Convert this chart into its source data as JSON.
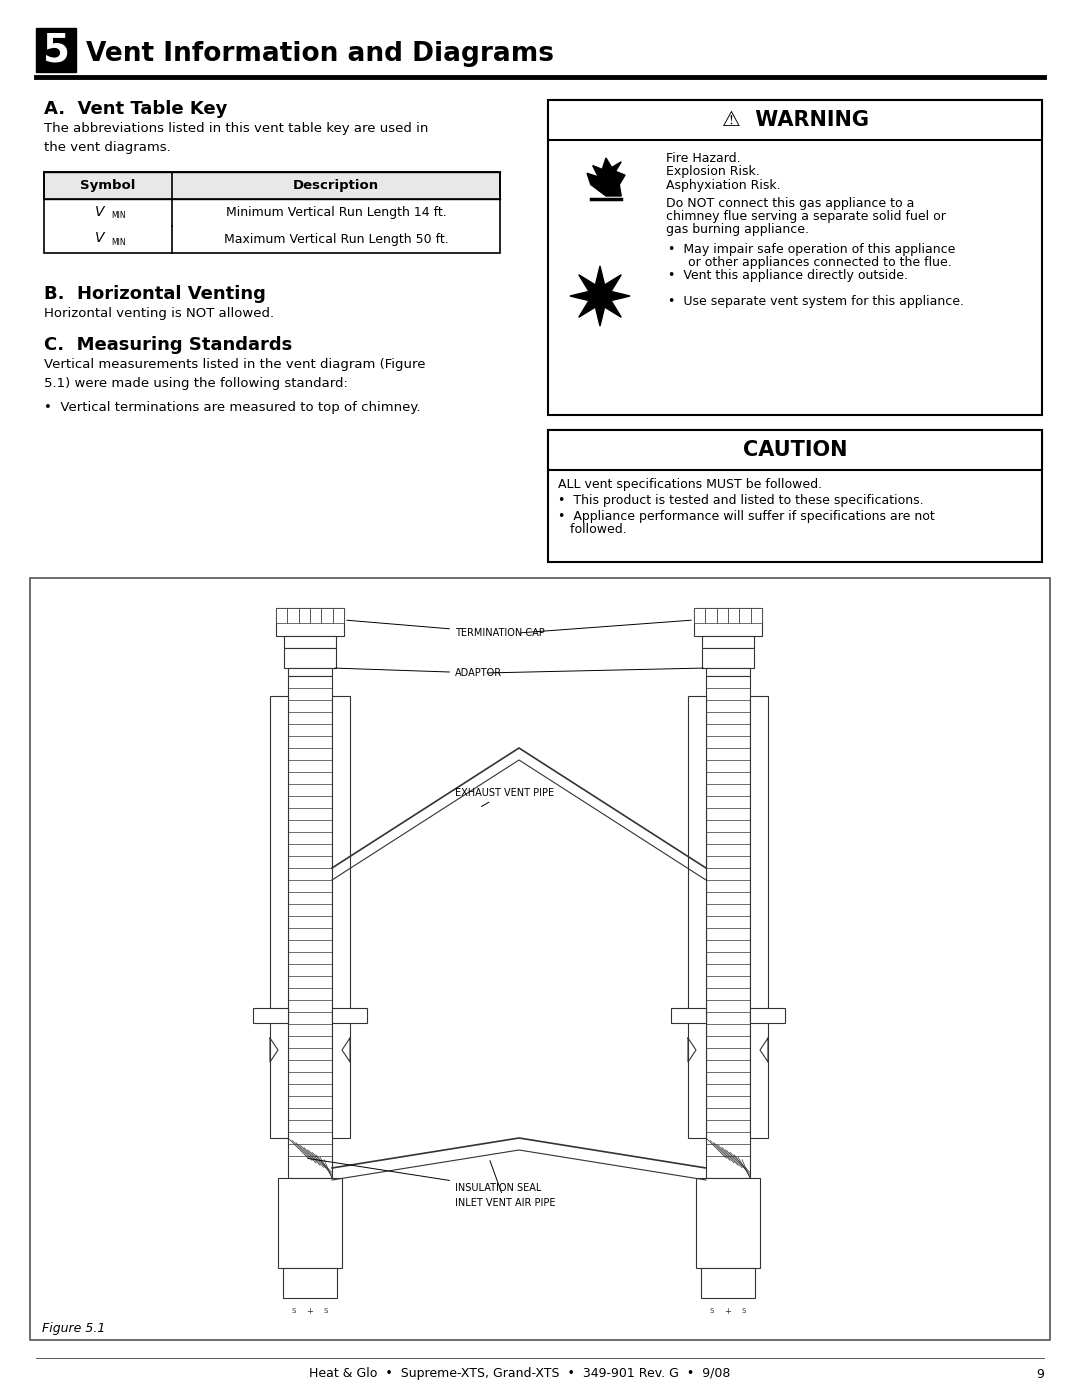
{
  "page_bg": "#ffffff",
  "title_number": "5",
  "title_text": "Vent Information and Diagrams",
  "section_a_title": "A.  Vent Table Key",
  "section_a_body": "The abbreviations listed in this vent table key are used in\nthe vent diagrams.",
  "table_headers": [
    "Symbol",
    "Description"
  ],
  "table_row1_desc": "Minimum Vertical Run Length 14 ft.",
  "table_row2_desc": "Maximum Vertical Run Length 50 ft.",
  "section_b_title": "B.  Horizontal Venting",
  "section_b_body": "Horizontal venting is NOT allowed.",
  "section_c_title": "C.  Measuring Standards",
  "section_c_body": "Vertical measurements listed in the vent diagram (Figure\n5.1) were made using the following standard:",
  "section_c_bullet": "•  Vertical terminations are measured to top of chimney.",
  "warning_title": "⚠  WARNING",
  "warning_line1": "Fire Hazard.",
  "warning_line2": "Explosion Risk.",
  "warning_line3": "Asphyxiation Risk.",
  "warning_body": "Do NOT connect this gas appliance to a\nchimney flue serving a separate solid fuel or\ngas burning appliance.",
  "warning_bullet1": "•  May impair safe operation of this appliance\n   or other appliances connected to the flue.",
  "warning_bullet2": "•  Vent this appliance directly outside.",
  "warning_bullet3": "•  Use separate vent system for this appliance.",
  "caution_title": "CAUTION",
  "caution_body": "ALL vent specifications MUST be followed.",
  "caution_bullet1": "•  This product is tested and listed to these specifications.",
  "caution_bullet2": "•  Appliance performance will suffer if specifications are not\n   followed.",
  "figure_label": "Figure 5.1",
  "footer": "Heat & Glo  •  Supreme-XTS, Grand-XTS  •  349-901 Rev. G  •  9/08",
  "footer_page": "9",
  "lbl_termcap": "TERMINATION CAP",
  "lbl_adaptor": "ADAPTOR",
  "lbl_exhaust": "EXHAUST VENT PIPE",
  "lbl_insulation": "INSULATION SEAL",
  "lbl_inlet": "INLET VENT AIR PIPE"
}
